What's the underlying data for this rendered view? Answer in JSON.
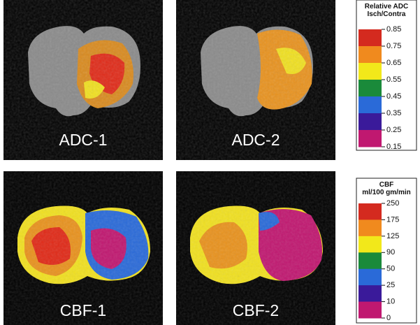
{
  "panels": [
    {
      "label": "ADC-1"
    },
    {
      "label": "ADC-2"
    },
    {
      "label": "CBF-1"
    },
    {
      "label": "CBF-2"
    }
  ],
  "colorbars": [
    {
      "title": [
        "Relative ADC",
        "Isch/Contra"
      ],
      "ticks": [
        "0.85",
        "0.75",
        "0.65",
        "0.55",
        "0.45",
        "0.35",
        "0.25",
        "0.15"
      ]
    },
    {
      "title": [
        "CBF",
        "ml/100 gm/min"
      ],
      "ticks": [
        "250",
        "175",
        "125",
        "90",
        "50",
        "25",
        "10",
        "0"
      ]
    }
  ]
}
